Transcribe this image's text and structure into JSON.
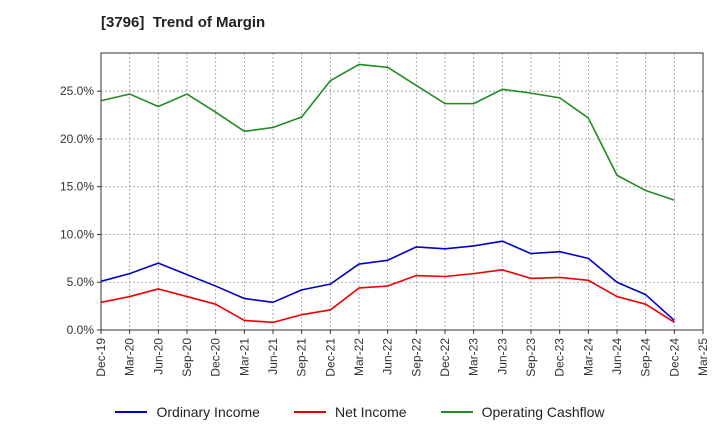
{
  "chart_data": {
    "type": "line",
    "title": "[3796]  Trend of Margin",
    "x": [
      "Dec-19",
      "Mar-20",
      "Jun-20",
      "Sep-20",
      "Dec-20",
      "Mar-21",
      "Jun-21",
      "Sep-21",
      "Dec-21",
      "Mar-22",
      "Jun-22",
      "Sep-22",
      "Dec-22",
      "Mar-23",
      "Jun-23",
      "Sep-23",
      "Dec-23",
      "Mar-24",
      "Jun-24",
      "Sep-24",
      "Dec-24",
      "Mar-25"
    ],
    "ylim": [
      0,
      29
    ],
    "yticks": [
      "0.0%",
      "5.0%",
      "10.0%",
      "15.0%",
      "20.0%",
      "25.0%"
    ],
    "ytick_values": [
      0,
      5,
      10,
      15,
      20,
      25
    ],
    "grid": true,
    "legend_position": "bottom",
    "series": [
      {
        "name": "Ordinary Income",
        "color": "#0000cc",
        "values": [
          5.1,
          5.9,
          7.0,
          5.8,
          4.6,
          3.3,
          2.9,
          4.2,
          4.8,
          6.9,
          7.3,
          8.7,
          8.5,
          8.8,
          9.3,
          8.0,
          8.2,
          7.5,
          5.0,
          3.7,
          1.0,
          null
        ]
      },
      {
        "name": "Net Income",
        "color": "#ee0000",
        "values": [
          2.9,
          3.5,
          4.3,
          3.5,
          2.7,
          1.0,
          0.8,
          1.6,
          2.1,
          4.4,
          4.6,
          5.7,
          5.6,
          5.9,
          6.3,
          5.4,
          5.5,
          5.2,
          3.5,
          2.7,
          0.8,
          null
        ]
      },
      {
        "name": "Operating Cashflow",
        "color": "#228b22",
        "values": [
          24.0,
          24.7,
          23.4,
          24.7,
          22.8,
          20.8,
          21.2,
          22.3,
          26.1,
          27.8,
          27.5,
          25.6,
          23.7,
          23.7,
          25.2,
          24.8,
          24.3,
          22.2,
          16.2,
          14.6,
          13.6,
          null
        ]
      }
    ]
  }
}
